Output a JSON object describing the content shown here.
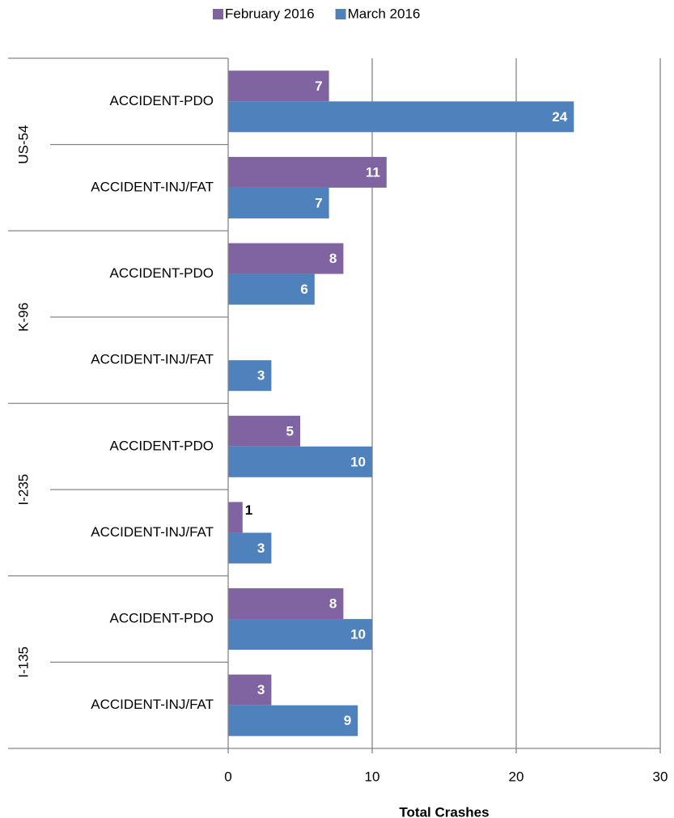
{
  "chart_data": {
    "type": "bar",
    "orientation": "horizontal",
    "groups": [
      {
        "name": "US-54",
        "categories": [
          "ACCIDENT-PDO",
          "ACCIDENT-INJ/FAT"
        ]
      },
      {
        "name": "K-96",
        "categories": [
          "ACCIDENT-PDO",
          "ACCIDENT-INJ/FAT"
        ]
      },
      {
        "name": "I-235",
        "categories": [
          "ACCIDENT-PDO",
          "ACCIDENT-INJ/FAT"
        ]
      },
      {
        "name": "I-135",
        "categories": [
          "ACCIDENT-PDO",
          "ACCIDENT-INJ/FAT"
        ]
      }
    ],
    "series": [
      {
        "name": "February 2016",
        "color": "#8064a2",
        "values": [
          7,
          11,
          8,
          null,
          5,
          1,
          8,
          3
        ]
      },
      {
        "name": "March 2016",
        "color": "#4f81bd",
        "values": [
          24,
          7,
          6,
          3,
          10,
          3,
          10,
          9
        ]
      }
    ],
    "xlabel": "Total Crashes",
    "xlim": [
      0,
      30
    ],
    "xticks": [
      0,
      10,
      20,
      30
    ],
    "grid": true,
    "legend": "top"
  }
}
